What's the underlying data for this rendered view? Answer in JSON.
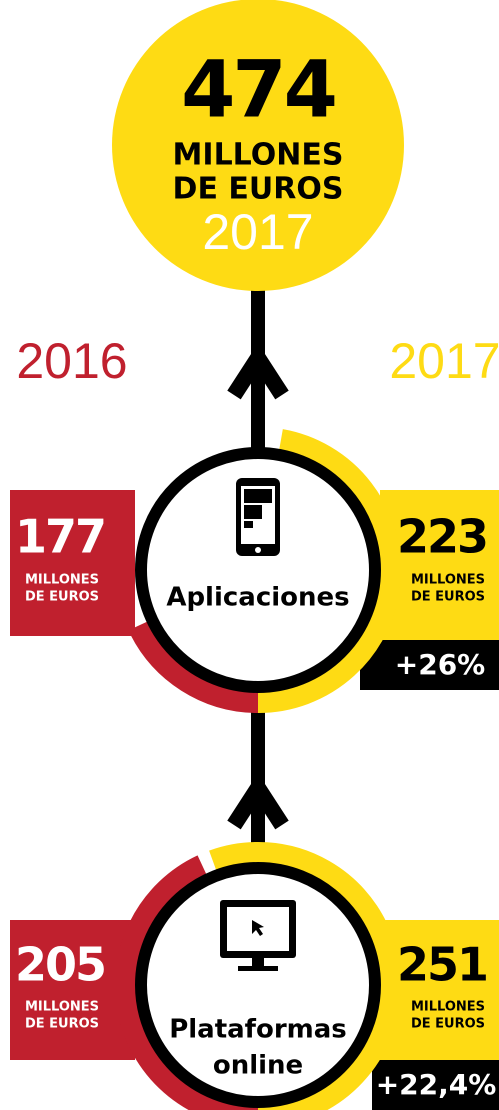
{
  "hero": {
    "value": "474",
    "unit": [
      "MILLONES",
      "DE EUROS"
    ],
    "year": "2017"
  },
  "years": [
    "2016",
    "2017"
  ],
  "segments": [
    {
      "label": [
        "Aplicaciones"
      ],
      "left": {
        "value": "177",
        "unit": [
          "MILLONES",
          "DE EUROS"
        ]
      },
      "right": {
        "value": "223",
        "unit": [
          "MILLONES",
          "DE EUROS"
        ]
      },
      "change": "+26%"
    },
    {
      "label": [
        "Plataformas",
        "online"
      ],
      "left": {
        "value": "205",
        "unit": [
          "MILLONES",
          "DE EUROS"
        ]
      },
      "right": {
        "value": "251",
        "unit": [
          "MILLONES",
          "DE EUROS"
        ]
      },
      "change": "+22,4%"
    }
  ]
}
